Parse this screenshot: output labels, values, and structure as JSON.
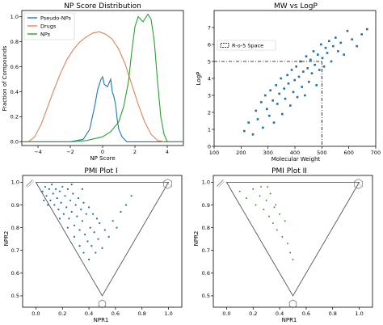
{
  "colors": {
    "pseudo_nps": "#1f77b4",
    "drugs": "#dd8452",
    "nps": "#2ca02c",
    "scatter": "#1f6fa8",
    "pmi1_points": "#1f6fa8",
    "pmi2_points": "#2e8b2e",
    "axis": "#000000",
    "guide": "#000000"
  },
  "chart_data": [
    {
      "id": "np",
      "type": "line",
      "title": "NP Score Distribution",
      "xlabel": "NP Score",
      "ylabel": "Fraction of Compounds",
      "xlim": [
        -5,
        5
      ],
      "ylim": [
        -0.03,
        1.05
      ],
      "xticks": [
        -4,
        -2,
        0,
        2,
        4
      ],
      "xtick_labels": [
        "−4",
        "−2",
        "0",
        "2",
        "4"
      ],
      "yticks": [
        0.0,
        0.2,
        0.4,
        0.6,
        0.8,
        1.0
      ],
      "ytick_labels": [
        "0.0",
        "0.2",
        "0.4",
        "0.6",
        "0.8",
        "1.0"
      ],
      "legend_position": "top-left",
      "grid": false,
      "series": [
        {
          "name": "Pseudo-NPs",
          "color_key": "pseudo_nps",
          "x": [
            -5.0,
            -2.0,
            -1.2,
            -0.8,
            -0.5,
            -0.3,
            -0.1,
            0.0,
            0.1,
            0.3,
            0.5,
            0.6,
            0.7,
            0.8,
            0.9,
            1.0,
            1.2,
            1.5,
            2.0,
            5.0
          ],
          "y": [
            0.0,
            0.0,
            0.02,
            0.1,
            0.28,
            0.42,
            0.5,
            0.52,
            0.46,
            0.44,
            0.5,
            0.4,
            0.36,
            0.3,
            0.18,
            0.1,
            0.04,
            0.0,
            0.0,
            0.0
          ]
        },
        {
          "name": "Drugs",
          "color_key": "drugs",
          "x": [
            -5.0,
            -4.6,
            -4.2,
            -3.8,
            -3.4,
            -3.0,
            -2.6,
            -2.2,
            -1.8,
            -1.4,
            -1.0,
            -0.6,
            -0.2,
            0.2,
            0.6,
            1.0,
            1.4,
            1.8,
            2.2,
            2.6,
            3.0,
            3.4,
            3.8
          ],
          "y": [
            0.0,
            0.0,
            0.04,
            0.14,
            0.28,
            0.42,
            0.55,
            0.66,
            0.74,
            0.8,
            0.84,
            0.87,
            0.88,
            0.86,
            0.82,
            0.74,
            0.62,
            0.46,
            0.3,
            0.16,
            0.06,
            0.01,
            0.0
          ]
        },
        {
          "name": "NPs",
          "color_key": "nps",
          "x": [
            -5.0,
            -2.0,
            -1.0,
            0.0,
            0.5,
            1.0,
            1.3,
            1.6,
            1.8,
            2.0,
            2.2,
            2.5,
            2.8,
            3.0,
            3.2,
            3.4,
            3.6,
            3.8,
            4.0,
            5.0
          ],
          "y": [
            0.0,
            0.0,
            0.01,
            0.04,
            0.08,
            0.16,
            0.28,
            0.48,
            0.72,
            0.92,
            1.0,
            0.96,
            1.02,
            0.98,
            0.8,
            0.48,
            0.2,
            0.06,
            0.0,
            0.0
          ]
        }
      ]
    },
    {
      "id": "mw",
      "type": "scatter",
      "title": "MW vs LogP",
      "xlabel": "Molecular Weight",
      "ylabel": "LogP",
      "xlim": [
        100,
        700
      ],
      "ylim": [
        0,
        8
      ],
      "xticks": [
        100,
        200,
        300,
        400,
        500,
        600,
        700
      ],
      "xtick_labels": [
        "100",
        "200",
        "300",
        "400",
        "500",
        "600",
        "700"
      ],
      "yticks": [
        0,
        1,
        2,
        3,
        4,
        5,
        6,
        7
      ],
      "ytick_labels": [
        "0",
        "1",
        "2",
        "3",
        "4",
        "5",
        "6",
        "7"
      ],
      "guide_x": 500,
      "guide_y": 5,
      "legend": "R-o-5 Space",
      "legend_position": "upper-left",
      "color_key": "scatter",
      "points": [
        [
          212,
          0.9
        ],
        [
          228,
          1.4
        ],
        [
          244,
          0.7
        ],
        [
          255,
          2.1
        ],
        [
          262,
          1.6
        ],
        [
          275,
          2.6
        ],
        [
          281,
          1.1
        ],
        [
          290,
          3.0
        ],
        [
          296,
          2.2
        ],
        [
          305,
          1.8
        ],
        [
          309,
          3.3
        ],
        [
          318,
          2.7
        ],
        [
          322,
          1.4
        ],
        [
          330,
          3.6
        ],
        [
          335,
          2.5
        ],
        [
          342,
          3.1
        ],
        [
          348,
          4.0
        ],
        [
          353,
          1.9
        ],
        [
          360,
          3.4
        ],
        [
          364,
          2.8
        ],
        [
          372,
          4.2
        ],
        [
          376,
          3.7
        ],
        [
          383,
          2.4
        ],
        [
          388,
          4.5
        ],
        [
          394,
          3.2
        ],
        [
          399,
          3.9
        ],
        [
          405,
          4.7
        ],
        [
          409,
          2.9
        ],
        [
          415,
          4.1
        ],
        [
          421,
          5.0
        ],
        [
          426,
          3.5
        ],
        [
          431,
          4.4
        ],
        [
          437,
          3.0
        ],
        [
          442,
          5.3
        ],
        [
          447,
          4.6
        ],
        [
          452,
          3.8
        ],
        [
          458,
          5.1
        ],
        [
          463,
          4.3
        ],
        [
          469,
          5.6
        ],
        [
          474,
          4.8
        ],
        [
          480,
          3.6
        ],
        [
          485,
          5.4
        ],
        [
          491,
          4.5
        ],
        [
          497,
          6.0
        ],
        [
          502,
          5.2
        ],
        [
          508,
          4.7
        ],
        [
          514,
          5.8
        ],
        [
          520,
          5.5
        ],
        [
          527,
          6.2
        ],
        [
          535,
          5.0
        ],
        [
          542,
          5.9
        ],
        [
          551,
          6.4
        ],
        [
          560,
          5.6
        ],
        [
          570,
          6.1
        ],
        [
          582,
          5.4
        ],
        [
          595,
          6.8
        ],
        [
          612,
          6.3
        ],
        [
          630,
          5.9
        ],
        [
          648,
          6.6
        ],
        [
          668,
          6.9
        ]
      ]
    },
    {
      "id": "pmi1",
      "type": "scatter",
      "title": "PMI Plot I",
      "xlabel": "NPR1",
      "ylabel": "NPR2",
      "xlim": [
        -0.1,
        1.1
      ],
      "ylim": [
        0.45,
        1.03
      ],
      "xticks": [
        0.0,
        0.2,
        0.4,
        0.6,
        0.8,
        1.0
      ],
      "xtick_labels": [
        "0.0",
        "0.2",
        "0.4",
        "0.6",
        "0.8",
        "1.0"
      ],
      "yticks": [
        0.5,
        0.6,
        0.7,
        0.8,
        0.9,
        1.0
      ],
      "ytick_labels": [
        "0.5",
        "0.6",
        "0.7",
        "0.8",
        "0.9",
        "1.0"
      ],
      "triangle": [
        [
          0,
          1
        ],
        [
          1,
          1
        ],
        [
          0.5,
          0.5
        ]
      ],
      "color_key": "pmi1_points",
      "points": [
        [
          0.05,
          0.96
        ],
        [
          0.07,
          0.98
        ],
        [
          0.08,
          0.94
        ],
        [
          0.1,
          0.97
        ],
        [
          0.11,
          0.92
        ],
        [
          0.12,
          0.99
        ],
        [
          0.13,
          0.95
        ],
        [
          0.14,
          0.9
        ],
        [
          0.15,
          0.97
        ],
        [
          0.16,
          0.93
        ],
        [
          0.17,
          0.88
        ],
        [
          0.18,
          0.96
        ],
        [
          0.19,
          0.91
        ],
        [
          0.2,
          0.98
        ],
        [
          0.21,
          0.86
        ],
        [
          0.22,
          0.94
        ],
        [
          0.23,
          0.89
        ],
        [
          0.24,
          0.97
        ],
        [
          0.25,
          0.84
        ],
        [
          0.26,
          0.92
        ],
        [
          0.27,
          0.87
        ],
        [
          0.28,
          0.95
        ],
        [
          0.29,
          0.81
        ],
        [
          0.3,
          0.9
        ],
        [
          0.31,
          0.85
        ],
        [
          0.32,
          0.93
        ],
        [
          0.33,
          0.79
        ],
        [
          0.34,
          0.88
        ],
        [
          0.35,
          0.83
        ],
        [
          0.36,
          0.91
        ],
        [
          0.37,
          0.77
        ],
        [
          0.38,
          0.86
        ],
        [
          0.39,
          0.74
        ],
        [
          0.4,
          0.89
        ],
        [
          0.41,
          0.8
        ],
        [
          0.42,
          0.72
        ],
        [
          0.43,
          0.86
        ],
        [
          0.44,
          0.78
        ],
        [
          0.45,
          0.69
        ],
        [
          0.46,
          0.84
        ],
        [
          0.47,
          0.75
        ],
        [
          0.48,
          0.82
        ],
        [
          0.5,
          0.71
        ],
        [
          0.52,
          0.79
        ],
        [
          0.55,
          0.76
        ],
        [
          0.58,
          0.83
        ],
        [
          0.61,
          0.8
        ],
        [
          0.64,
          0.87
        ],
        [
          0.68,
          0.9
        ],
        [
          0.72,
          0.94
        ],
        [
          0.06,
          0.92
        ],
        [
          0.09,
          0.9
        ],
        [
          0.18,
          0.84
        ],
        [
          0.24,
          0.8
        ],
        [
          0.29,
          0.76
        ],
        [
          0.33,
          0.72
        ],
        [
          0.36,
          0.69
        ],
        [
          0.4,
          0.66
        ],
        [
          0.27,
          0.99
        ],
        [
          0.35,
          0.97
        ]
      ]
    },
    {
      "id": "pmi2",
      "type": "scatter",
      "title": "PMI Plot II",
      "xlabel": "NPR1",
      "ylabel": "NPR2",
      "xlim": [
        -0.1,
        1.1
      ],
      "ylim": [
        0.45,
        1.03
      ],
      "xticks": [
        0.0,
        0.2,
        0.4,
        0.6,
        0.8,
        1.0
      ],
      "xtick_labels": [
        "0.0",
        "0.2",
        "0.4",
        "0.6",
        "0.8",
        "1.0"
      ],
      "yticks": [
        0.5,
        0.6,
        0.7,
        0.8,
        0.9,
        1.0
      ],
      "ytick_labels": [
        "0.5",
        "0.6",
        "0.7",
        "0.8",
        "0.9",
        "1.0"
      ],
      "triangle": [
        [
          0,
          1
        ],
        [
          1,
          1
        ],
        [
          0.5,
          0.5
        ]
      ],
      "color_key": "pmi2_points",
      "points": [
        [
          0.1,
          0.96
        ],
        [
          0.15,
          0.93
        ],
        [
          0.2,
          0.97
        ],
        [
          0.22,
          0.9
        ],
        [
          0.25,
          0.94
        ],
        [
          0.28,
          0.88
        ],
        [
          0.3,
          0.92
        ],
        [
          0.32,
          0.85
        ],
        [
          0.33,
          0.95
        ],
        [
          0.35,
          0.82
        ],
        [
          0.36,
          0.89
        ],
        [
          0.38,
          0.79
        ],
        [
          0.4,
          0.86
        ],
        [
          0.42,
          0.76
        ],
        [
          0.44,
          0.83
        ],
        [
          0.46,
          0.73
        ],
        [
          0.48,
          0.69
        ],
        [
          0.5,
          0.66
        ],
        [
          0.26,
          0.98
        ],
        [
          0.31,
          0.98
        ],
        [
          0.37,
          0.9
        ]
      ]
    }
  ]
}
